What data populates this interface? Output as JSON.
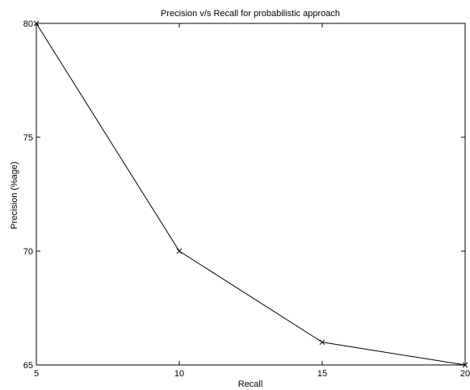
{
  "chart_data": {
    "type": "line",
    "title": "Precision v/s Recall for probabilistic approach",
    "xlabel": "Recall",
    "ylabel": "Precision (%age)",
    "xlim": [
      5,
      20
    ],
    "ylim": [
      65,
      80
    ],
    "xticks": [
      5,
      10,
      15,
      20
    ],
    "yticks": [
      65,
      70,
      75,
      80
    ],
    "grid": false,
    "series": [
      {
        "color": "#000000",
        "marker": "x",
        "x": [
          5,
          10,
          15,
          20
        ],
        "y": [
          80,
          70,
          66,
          65
        ]
      }
    ]
  }
}
